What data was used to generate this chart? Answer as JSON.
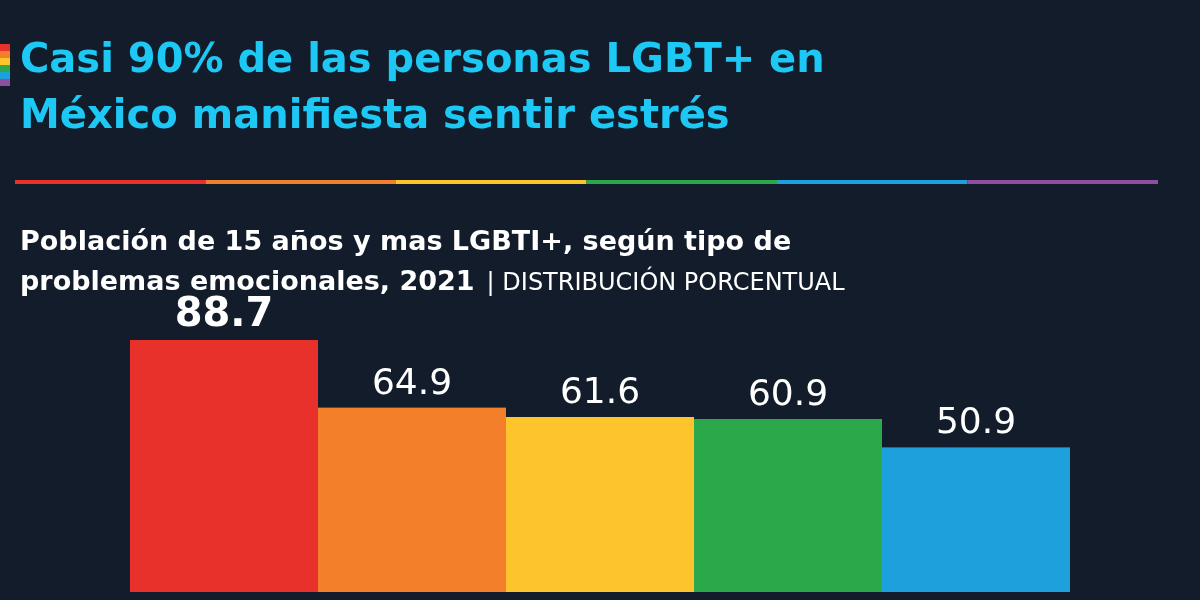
{
  "chart_data": {
    "type": "bar",
    "title": "Casi 90% de las personas LGBT+ en México manifiesta sentir estrés",
    "subtitle": "Población de 15 años y mas LGBTI+, según tipo de problemas emocionales, 2021",
    "annotations": [
      "| DISTRIBUCIÓN PORCENTUAL"
    ],
    "categories": [
      null,
      null,
      null,
      null,
      null
    ],
    "values": [
      88.7,
      64.9,
      61.6,
      60.9,
      50.9
    ],
    "colors": [
      "#e8312a",
      "#f47f2a",
      "#fdc52b",
      "#2aa84a",
      "#1ea0dc"
    ],
    "data_labels": true
  }
}
